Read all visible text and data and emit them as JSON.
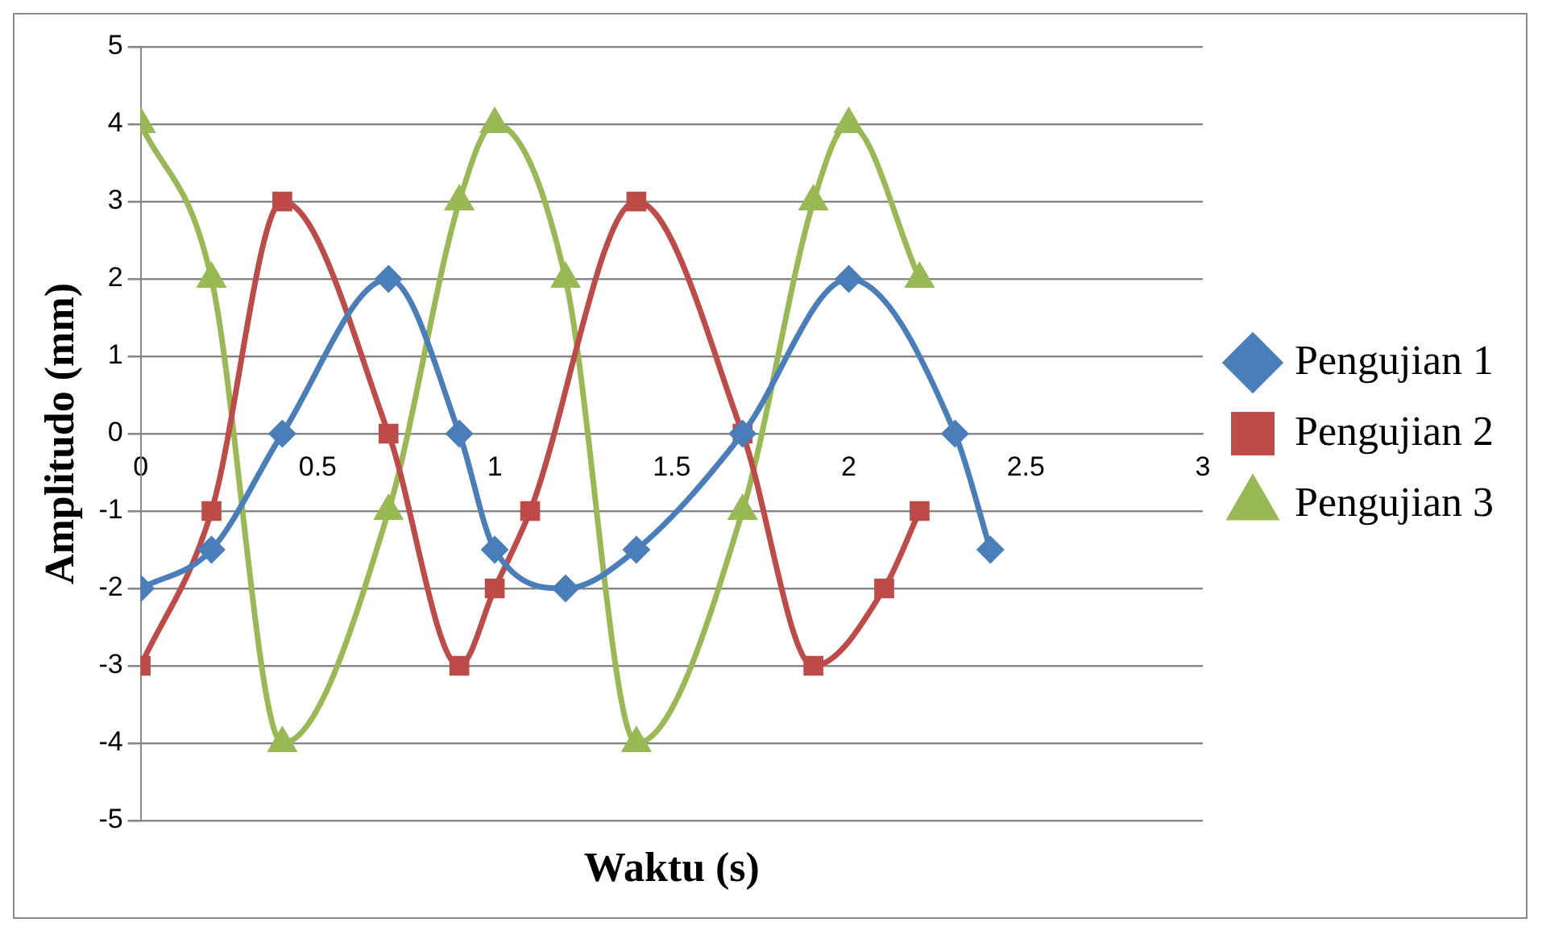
{
  "chart_data": {
    "type": "line",
    "xlabel": "Waktu (s)",
    "ylabel": "Amplitudo (mm)",
    "xlim": [
      0,
      3
    ],
    "xticks": [
      0,
      0.5,
      1,
      1.5,
      2,
      2.5,
      3
    ],
    "ylim": [
      -5,
      5
    ],
    "yticks": [
      -5,
      -4,
      -3,
      -2,
      -1,
      0,
      1,
      2,
      3,
      4,
      5
    ],
    "grid": "y",
    "legend": "right",
    "line_style": "solid",
    "series": [
      {
        "name": "Pengujian 1",
        "color": "#4a7ebb",
        "marker": "diamond",
        "x": [
          0,
          0.2,
          0.4,
          0.7,
          0.9,
          1.0,
          1.2,
          1.4,
          1.7,
          2.0,
          2.3,
          2.4
        ],
        "values": [
          -2,
          -1.5,
          0,
          2,
          0,
          -1.5,
          -2,
          -1.5,
          0,
          2,
          0,
          -1.5
        ]
      },
      {
        "name": "Pengujian 2",
        "color": "#be4b48",
        "marker": "square",
        "x": [
          0,
          0.2,
          0.4,
          0.7,
          0.9,
          1.0,
          1.1,
          1.4,
          1.7,
          1.9,
          2.1,
          2.2
        ],
        "values": [
          -3,
          -1,
          3,
          0,
          -3,
          -2,
          -1,
          3,
          0,
          -3,
          -2,
          -1
        ]
      },
      {
        "name": "Pengujian 3",
        "color": "#98b954",
        "marker": "triangle",
        "x": [
          0,
          0.2,
          0.4,
          0.7,
          0.9,
          1.0,
          1.2,
          1.4,
          1.7,
          1.9,
          2.0,
          2.2
        ],
        "values": [
          4,
          2,
          -4,
          -1,
          3,
          4,
          2,
          -4,
          -1,
          3,
          4,
          2
        ]
      }
    ]
  }
}
